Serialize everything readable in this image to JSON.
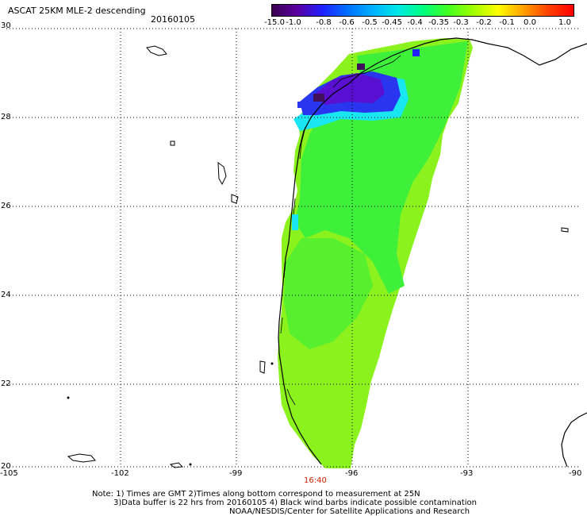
{
  "header": {
    "title": "ASCAT 25KM MLE-2 descending",
    "date": "20160105"
  },
  "colorbar": {
    "labels": [
      "-15.0",
      "-1.0",
      "-0.8",
      "-0.6",
      "-0.5",
      "-0.45",
      "-0.4",
      "-0.35",
      "-0.3",
      "-0.2",
      "-0.1",
      "0.0",
      "1.0"
    ],
    "colors": [
      "#3a0050",
      "#5a00a0",
      "#2020ff",
      "#0070ff",
      "#00b0ff",
      "#00e8e8",
      "#00ff80",
      "#40ff20",
      "#a0ff00",
      "#ffff00",
      "#ffa000",
      "#ff4000",
      "#ff0000"
    ]
  },
  "axes": {
    "lon_labels": [
      "-105",
      "-102",
      "-99",
      "-96",
      "-93",
      "-90"
    ],
    "lat_labels": [
      "30",
      "28",
      "26",
      "24",
      "22",
      "20"
    ]
  },
  "map": {
    "swath_colors": {
      "main": "#8cf21e",
      "green": "#3ef03a",
      "cyan": "#18e6f0",
      "blue": "#2a35f0",
      "purple": "#5a10d0",
      "dark": "#40105a"
    }
  },
  "time_label": "16:40",
  "notes": [
    "Note: 1) Times are GMT 2)Times along bottom correspond to measurement at 25N",
    "3)Data buffer is 22 hrs from 20160105 4) Black wind barbs indicate possible contamination",
    "NOAA/NESDIS/Center for Satellite Applications and Research"
  ]
}
